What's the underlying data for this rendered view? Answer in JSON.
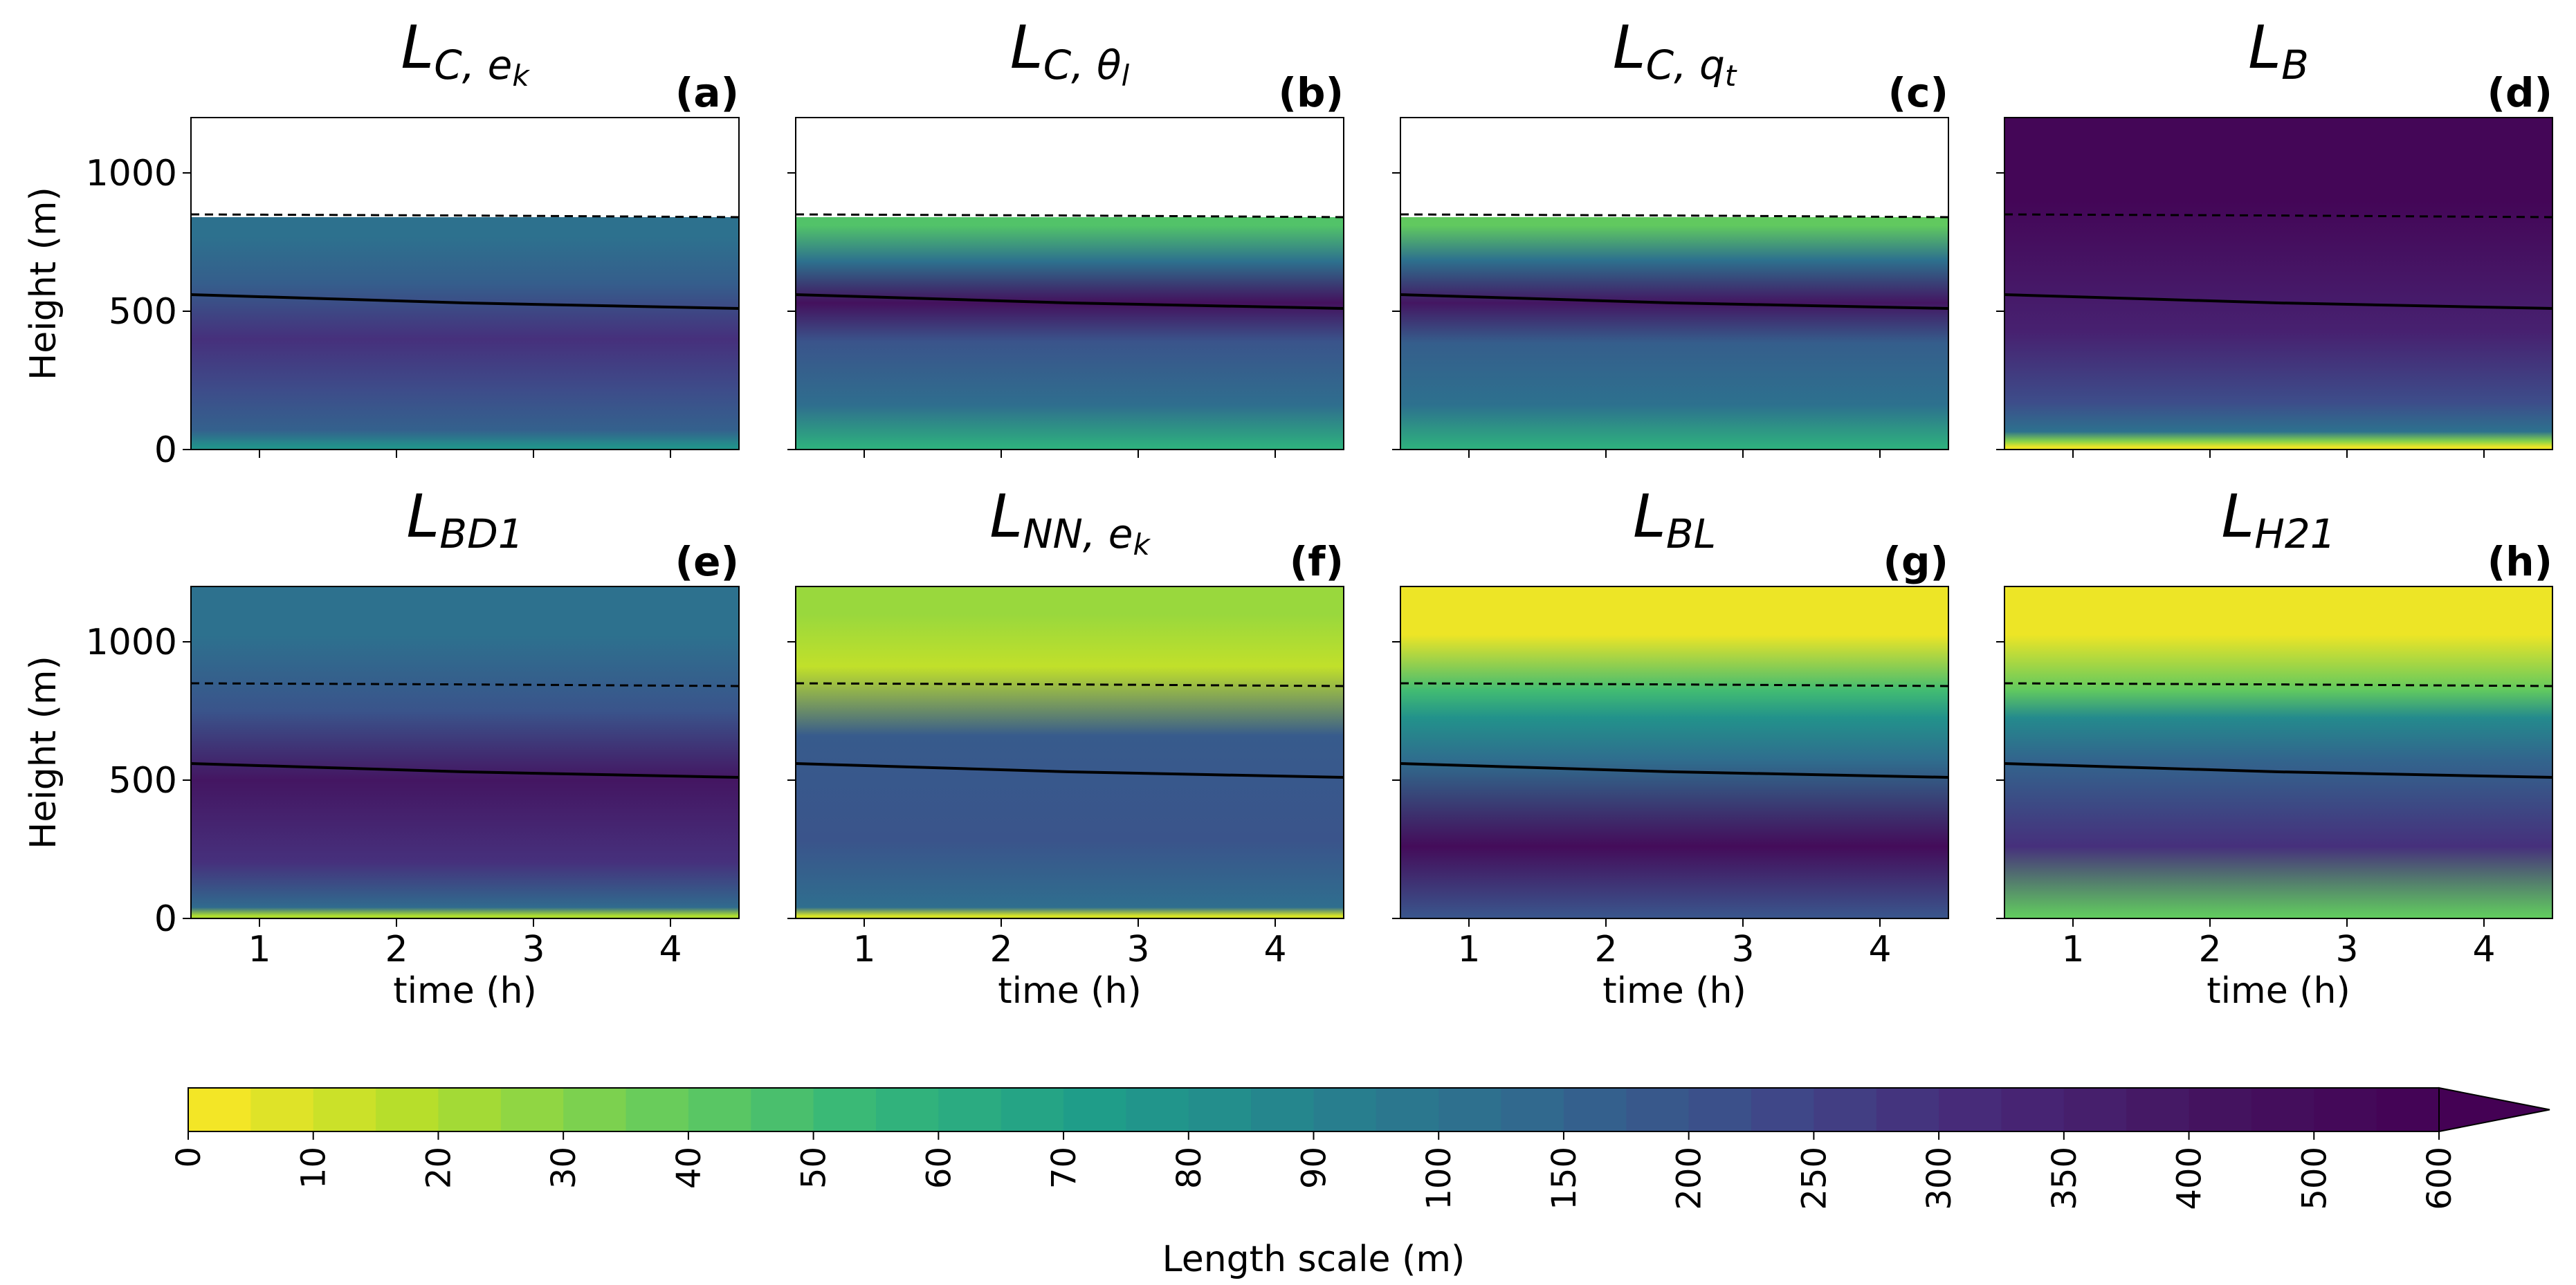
{
  "figure": {
    "colorbar_label": "Length scale (m)",
    "y_label": "Height (m)",
    "x_label": "time (h)"
  },
  "chart_data": {
    "type": "heatmap",
    "x_range_hours": [
      0.5,
      4.5
    ],
    "y_range_m": [
      0,
      1200
    ],
    "x_ticks": [
      1,
      2,
      3,
      4
    ],
    "x_tick_labels": [
      "1",
      "2",
      "3",
      "4"
    ],
    "y_ticks": [
      0,
      500,
      1000
    ],
    "y_tick_labels": [
      "0",
      "500",
      "1000"
    ],
    "colorbar": {
      "levels": [
        0,
        5,
        10,
        15,
        20,
        25,
        30,
        35,
        40,
        45,
        50,
        55,
        60,
        65,
        70,
        75,
        80,
        85,
        90,
        95,
        100,
        125,
        150,
        175,
        200,
        225,
        250,
        275,
        300,
        325,
        350,
        375,
        400,
        450,
        500,
        550,
        600
      ],
      "tick_values": [
        0,
        10,
        20,
        30,
        40,
        50,
        60,
        70,
        80,
        90,
        100,
        150,
        200,
        250,
        300,
        350,
        400,
        500,
        600
      ],
      "tick_labels": [
        "0",
        "10",
        "20",
        "30",
        "40",
        "50",
        "60",
        "70",
        "80",
        "90",
        "100",
        "150",
        "200",
        "250",
        "300",
        "350",
        "400",
        "500",
        "600"
      ],
      "colormap": "viridis_r",
      "extend": "max"
    },
    "lines": {
      "solid_height_m": [
        560,
        545,
        530,
        520,
        510
      ],
      "dashed_height_m": [
        850,
        848,
        846,
        843,
        840
      ],
      "line_times_h": [
        0.5,
        1.5,
        2.5,
        3.5,
        4.5
      ]
    },
    "panels": [
      {
        "key": "a",
        "title_main": "L",
        "title_sub": "C, e",
        "title_subsub": "k",
        "label": "(a)",
        "top_blank": true,
        "bands": [
          [
            0,
            20,
            80
          ],
          [
            20,
            120,
            160
          ],
          [
            120,
            300,
            220
          ],
          [
            300,
            500,
            300
          ],
          [
            500,
            700,
            170
          ],
          [
            700,
            840,
            110
          ]
        ]
      },
      {
        "key": "b",
        "title_main": "L",
        "title_sub": "C, θ",
        "title_subsub": "l",
        "label": "(b)",
        "top_blank": true,
        "bands": [
          [
            0,
            20,
            60
          ],
          [
            20,
            300,
            120
          ],
          [
            300,
            480,
            200
          ],
          [
            480,
            580,
            450
          ],
          [
            580,
            780,
            110
          ],
          [
            780,
            840,
            45
          ]
        ]
      },
      {
        "key": "c",
        "title_main": "L",
        "title_sub": "C, q",
        "title_subsub": "t",
        "label": "(c)",
        "top_blank": true,
        "bands": [
          [
            0,
            20,
            60
          ],
          [
            20,
            300,
            110
          ],
          [
            300,
            470,
            170
          ],
          [
            470,
            590,
            400
          ],
          [
            590,
            780,
            110
          ],
          [
            780,
            840,
            40
          ]
        ]
      },
      {
        "key": "d",
        "title_main": "L",
        "title_sub": "B",
        "title_subsub": "",
        "label": "(d)",
        "top_blank": false,
        "bands": [
          [
            0,
            20,
            5
          ],
          [
            20,
            40,
            30
          ],
          [
            40,
            90,
            110
          ],
          [
            90,
            250,
            220
          ],
          [
            250,
            600,
            350
          ],
          [
            600,
            1200,
            550
          ]
        ]
      },
      {
        "key": "e",
        "title_main": "L",
        "title_sub": "BD1",
        "title_subsub": "",
        "label": "(e)",
        "top_blank": false,
        "bands": [
          [
            0,
            20,
            20
          ],
          [
            20,
            60,
            130
          ],
          [
            60,
            350,
            300
          ],
          [
            350,
            650,
            400
          ],
          [
            650,
            850,
            200
          ],
          [
            850,
            1200,
            110
          ]
        ]
      },
      {
        "key": "f",
        "title_main": "L",
        "title_sub": "NN, e",
        "title_subsub": "k",
        "label": "(f)",
        "top_blank": false,
        "bands": [
          [
            0,
            20,
            10
          ],
          [
            20,
            60,
            120
          ],
          [
            60,
            500,
            200
          ],
          [
            500,
            820,
            180
          ],
          [
            820,
            1000,
            15
          ],
          [
            1000,
            1200,
            25
          ]
        ]
      },
      {
        "key": "g",
        "title_main": "L",
        "title_sub": "BL",
        "title_subsub": "",
        "label": "(g)",
        "top_blank": false,
        "bands": [
          [
            0,
            20,
            200
          ],
          [
            20,
            500,
            500
          ],
          [
            500,
            650,
            120
          ],
          [
            650,
            800,
            80
          ],
          [
            800,
            850,
            50
          ],
          [
            850,
            1200,
            4
          ]
        ]
      },
      {
        "key": "h",
        "title_main": "L",
        "title_sub": "H21",
        "title_subsub": "",
        "label": "(h)",
        "top_blank": false,
        "bands": [
          [
            0,
            20,
            40
          ],
          [
            20,
            500,
            300
          ],
          [
            500,
            650,
            150
          ],
          [
            650,
            800,
            85
          ],
          [
            800,
            850,
            40
          ],
          [
            850,
            1200,
            4
          ]
        ]
      }
    ]
  }
}
